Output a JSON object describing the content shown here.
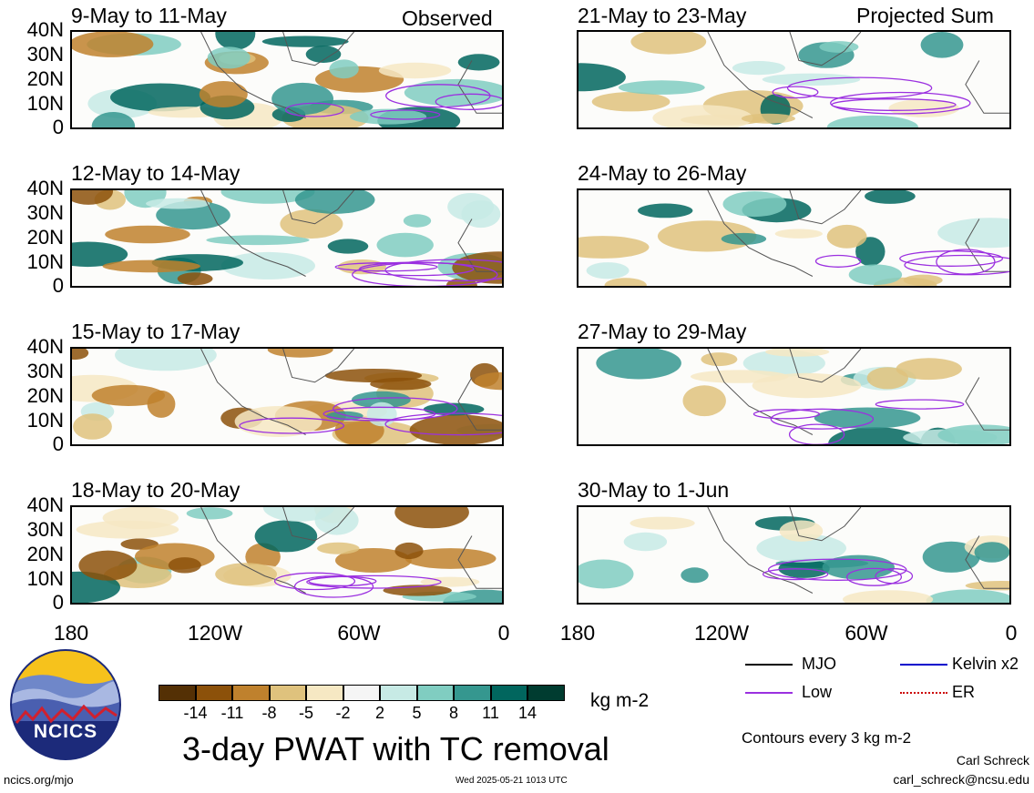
{
  "panels_left": [
    {
      "title": "9-May to 11-May",
      "tag": "Observed"
    },
    {
      "title": "12-May to 14-May",
      "tag": ""
    },
    {
      "title": "15-May to 17-May",
      "tag": ""
    },
    {
      "title": "18-May to 20-May",
      "tag": ""
    }
  ],
  "panels_right": [
    {
      "title": "21-May to 23-May",
      "tag": "Projected Sum"
    },
    {
      "title": "24-May to 26-May",
      "tag": ""
    },
    {
      "title": "27-May to 29-May",
      "tag": ""
    },
    {
      "title": "30-May to 1-Jun",
      "tag": ""
    }
  ],
  "lat_labels": [
    "40N",
    "30N",
    "20N",
    "10N",
    "0"
  ],
  "lon_labels": [
    "180",
    "120W",
    "60W",
    "0"
  ],
  "colorbar": {
    "labels": [
      "-14",
      "-11",
      "-8",
      "-5",
      "-2",
      "2",
      "5",
      "8",
      "11",
      "14"
    ],
    "colors": [
      "#543005",
      "#8c510a",
      "#bf812d",
      "#dfc27d",
      "#f6e8c3",
      "#f5f5f5",
      "#c7eae5",
      "#80cdc1",
      "#35978f",
      "#01665e",
      "#003c30"
    ],
    "units": "kg m-2"
  },
  "legend": {
    "items": [
      {
        "label": "MJO",
        "color": "#000000"
      },
      {
        "label": "Kelvin x2",
        "color": "#0000cc"
      },
      {
        "label": "Low",
        "color": "#9b30e0"
      },
      {
        "label": "ER",
        "color": "#cc0000"
      }
    ],
    "contours_note": "Contours every 3 kg m-2"
  },
  "main_title": "3-day PWAT with TC removal",
  "logo_text": "NCICS",
  "footer": {
    "url": "ncics.org/mjo",
    "timestamp": "Wed 2025-05-21 1013 UTC",
    "author": "Carl Schreck",
    "email": "carl_schreck@ncsu.edu"
  }
}
